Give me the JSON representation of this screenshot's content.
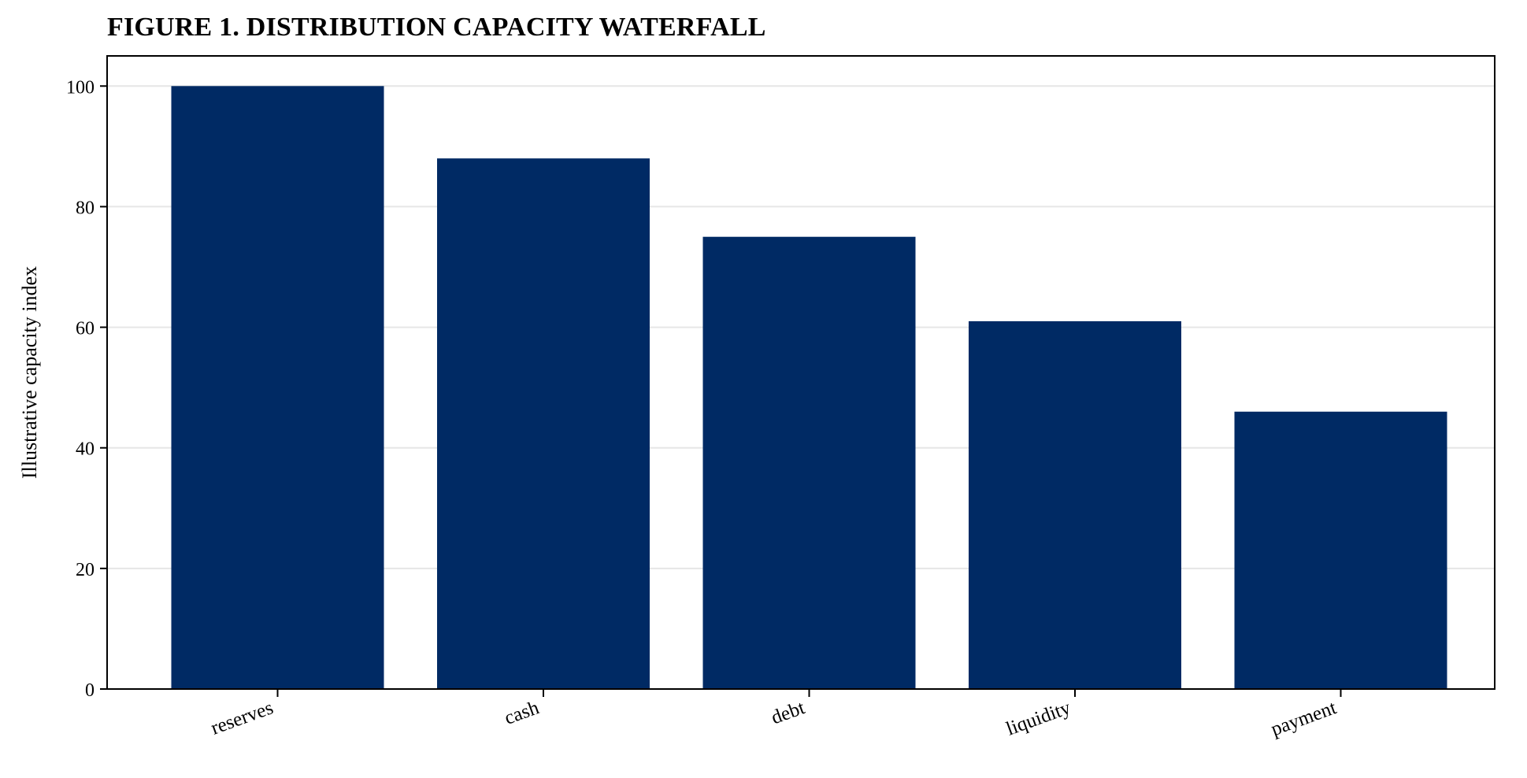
{
  "chart_data": {
    "type": "bar",
    "title": "FIGURE 1. DISTRIBUTION CAPACITY WATERFALL",
    "xlabel": "",
    "ylabel": "Illustrative capacity index",
    "categories": [
      "reserves",
      "cash",
      "debt",
      "liquidity",
      "payment"
    ],
    "values": [
      100,
      88,
      75,
      61,
      46
    ],
    "ylim": [
      0,
      105
    ],
    "yticks": [
      0,
      20,
      40,
      60,
      80,
      100
    ],
    "grid": "horizontal",
    "bar_color": "#002A64",
    "grid_color": "#E6E6E6"
  }
}
